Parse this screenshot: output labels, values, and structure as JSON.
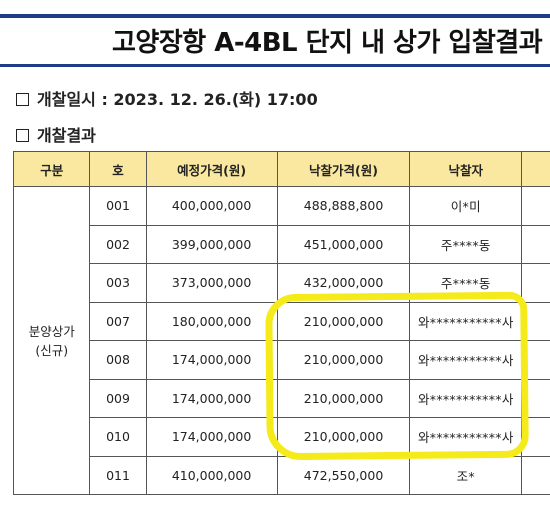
{
  "title": "고양장항 A-4BL 단지 내 상가 입찰결과",
  "opening_datetime": {
    "label": "개찰일시 : 2023. 12. 26.(화) 17:00"
  },
  "results_heading": "개찰결과",
  "table": {
    "headers": [
      "구분",
      "호",
      "예정가격(원)",
      "낙찰가격(원)",
      "낙찰자"
    ],
    "group_label_line1": "분양상가",
    "group_label_line2": "(신규)",
    "rows": [
      {
        "unit": "001",
        "estimated_price": "400,000,000",
        "winning_price": "488,888,800",
        "winner": "이*미"
      },
      {
        "unit": "002",
        "estimated_price": "399,000,000",
        "winning_price": "451,000,000",
        "winner": "주****동"
      },
      {
        "unit": "003",
        "estimated_price": "373,000,000",
        "winning_price": "432,000,000",
        "winner": "주****동"
      },
      {
        "unit": "007",
        "estimated_price": "180,000,000",
        "winning_price": "210,000,000",
        "winner": "와***********사"
      },
      {
        "unit": "008",
        "estimated_price": "174,000,000",
        "winning_price": "210,000,000",
        "winner": "와***********사"
      },
      {
        "unit": "009",
        "estimated_price": "174,000,000",
        "winning_price": "210,000,000",
        "winner": "와***********사"
      },
      {
        "unit": "010",
        "estimated_price": "174,000,000",
        "winning_price": "210,000,000",
        "winner": "와***********사"
      },
      {
        "unit": "011",
        "estimated_price": "410,000,000",
        "winning_price": "472,550,000",
        "winner": "조*"
      }
    ]
  },
  "colors": {
    "header_fill": "#fbe8a0",
    "title_rule": "#1f3c88",
    "highlight": "#f5ea1a"
  }
}
